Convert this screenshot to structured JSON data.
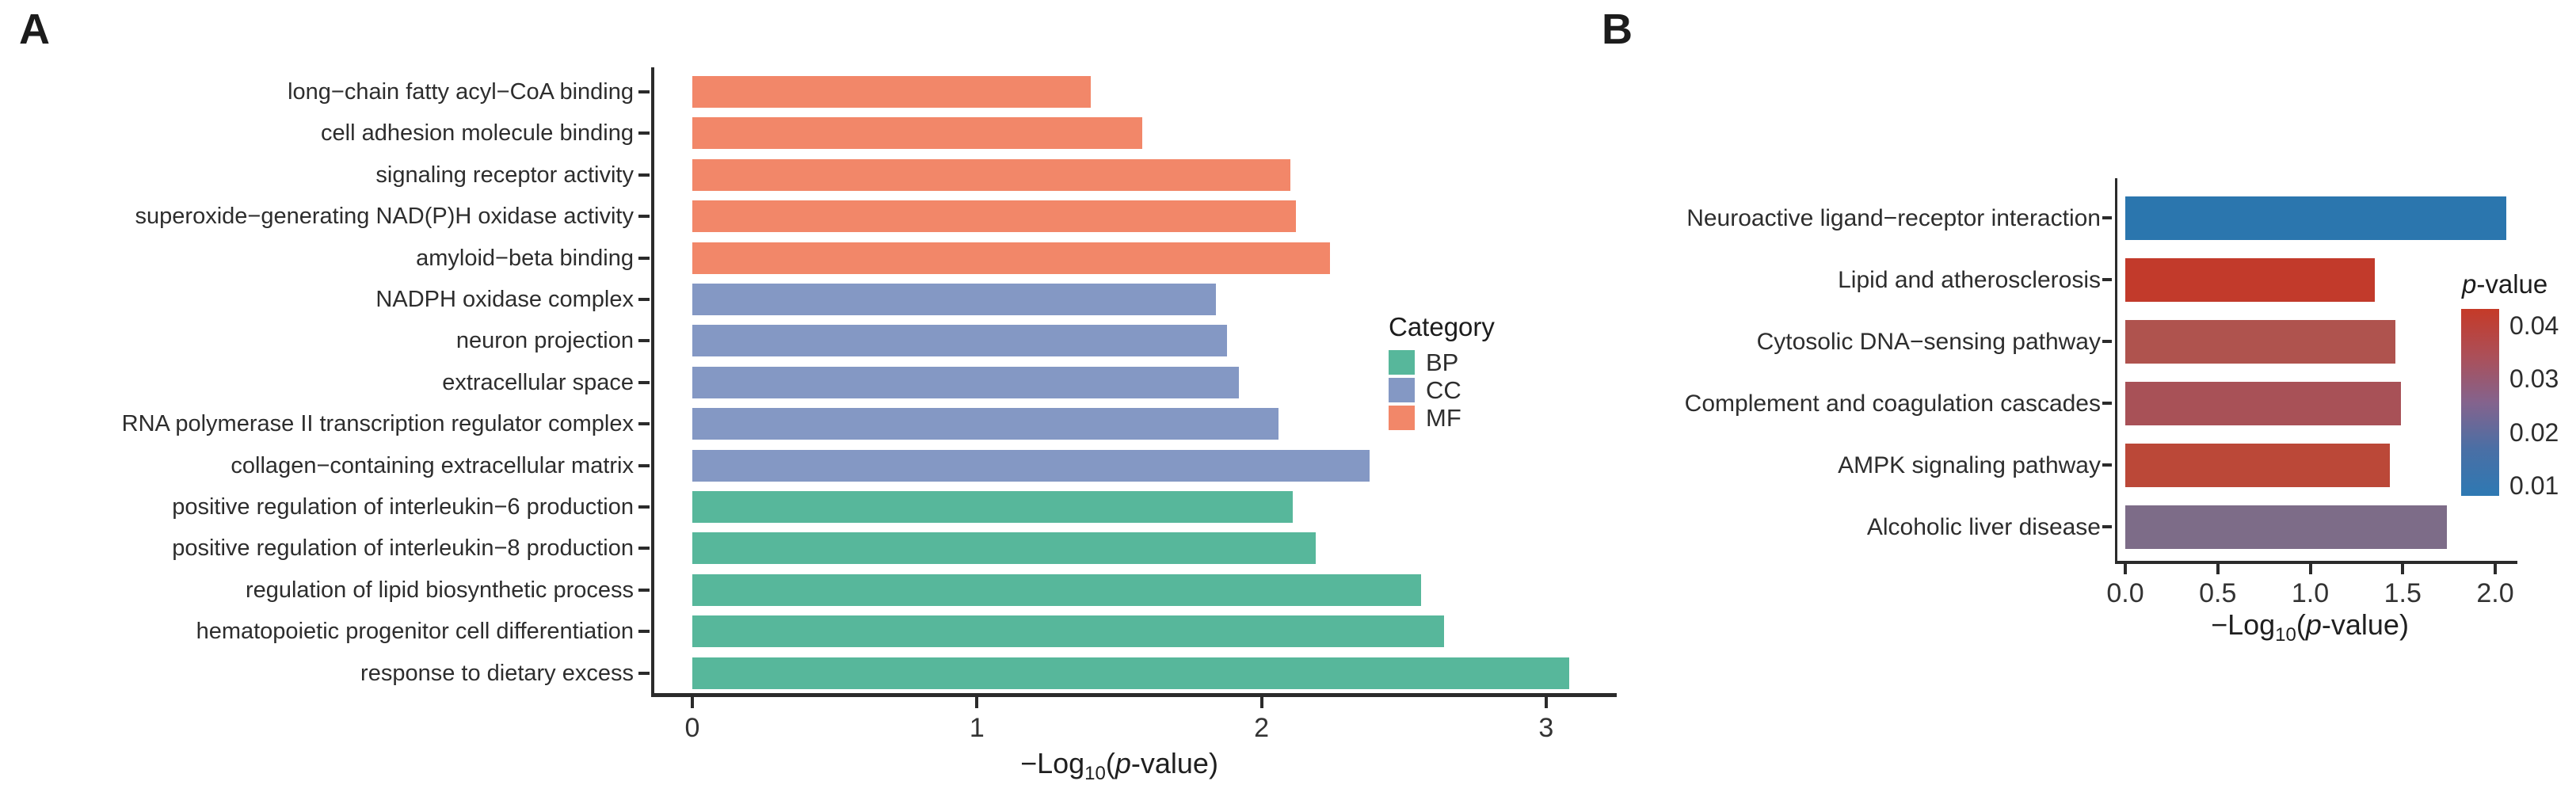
{
  "panels": {
    "a_label": "A",
    "b_label": "B"
  },
  "chart_data": [
    {
      "type": "bar",
      "orientation": "horizontal",
      "panel": "A",
      "title": "",
      "categories": [
        "long−chain fatty acyl−CoA binding",
        "cell adhesion molecule binding",
        "signaling receptor activity",
        "superoxide−generating NAD(P)H oxidase activity",
        "amyloid−beta binding",
        "NADPH oxidase complex",
        "neuron projection",
        "extracellular space",
        "RNA polymerase II transcription regulator complex",
        "collagen−containing extracellular matrix",
        "positive regulation of interleukin−6 production",
        "positive regulation of interleukin−8 production",
        "regulation of lipid biosynthetic process",
        "hematopoietic progenitor cell differentiation",
        "response to dietary excess"
      ],
      "values": [
        1.4,
        1.58,
        2.1,
        2.12,
        2.24,
        1.84,
        1.88,
        1.92,
        2.06,
        2.38,
        2.11,
        2.19,
        2.56,
        2.64,
        3.08
      ],
      "bar_categories": [
        "MF",
        "MF",
        "MF",
        "MF",
        "MF",
        "CC",
        "CC",
        "CC",
        "CC",
        "CC",
        "BP",
        "BP",
        "BP",
        "BP",
        "BP"
      ],
      "xlabel": "−Log10(p-value)",
      "xlabel_parts": {
        "pre": "−Log",
        "sub": "10",
        "open": "(",
        "p": "p",
        "tail": "-value)"
      },
      "xlim": [
        0,
        3.25
      ],
      "xticks": [
        0,
        1,
        2,
        3
      ],
      "xtick_labels": [
        "0",
        "1",
        "2",
        "3"
      ],
      "legend": {
        "title": "Category",
        "position": "right",
        "entries": [
          {
            "label": "BP",
            "color": "#57B79B"
          },
          {
            "label": "CC",
            "color": "#8498C4"
          },
          {
            "label": "MF",
            "color": "#F28769"
          }
        ]
      }
    },
    {
      "type": "bar",
      "orientation": "horizontal",
      "panel": "B",
      "title": "",
      "categories": [
        "Neuroactive ligand−receptor interaction",
        "Lipid and atherosclerosis",
        "Cytosolic DNA−sensing pathway",
        "Complement and coagulation cascades",
        "AMPK signaling pathway",
        "Alcoholic liver disease"
      ],
      "values": [
        2.06,
        1.35,
        1.46,
        1.49,
        1.43,
        1.74
      ],
      "bar_colors": [
        "#2B76AE",
        "#C23A2B",
        "#AF534E",
        "#A85157",
        "#BB4838",
        "#7D6C88"
      ],
      "xlabel": "−Log10(p-value)",
      "xlabel_parts": {
        "pre": "−Log",
        "sub": "10",
        "open": "(",
        "p": "p",
        "tail": "-value)"
      },
      "xlim": [
        0,
        2.15
      ],
      "xticks": [
        0.0,
        0.5,
        1.0,
        1.5,
        2.0
      ],
      "xtick_labels": [
        "0.0",
        "0.5",
        "1.0",
        "1.5",
        "2.0"
      ],
      "colorbar": {
        "title_parts": {
          "p": "p",
          "rest": "-value"
        },
        "labels": [
          "0.04",
          "0.03",
          "0.02",
          "0.01"
        ],
        "gradient": [
          "#C53A28",
          "#AC4F58",
          "#84638D",
          "#4A6FA5",
          "#2E79B3"
        ]
      }
    }
  ]
}
